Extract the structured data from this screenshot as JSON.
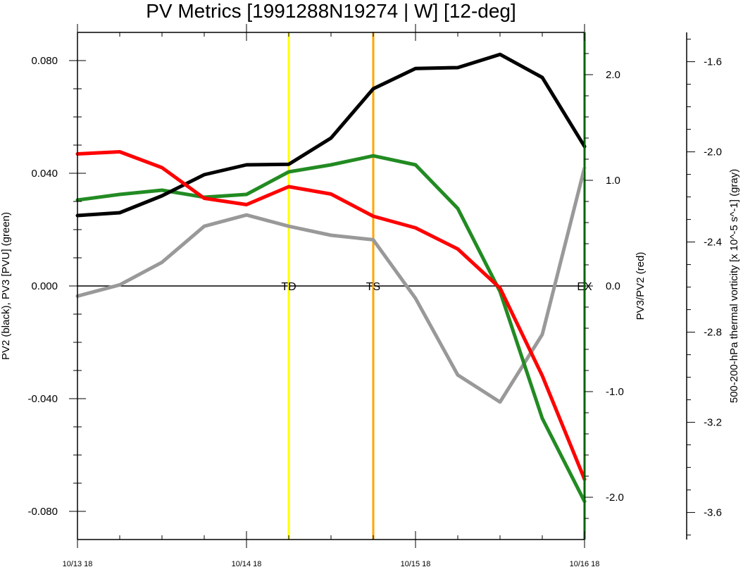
{
  "chart_data": {
    "type": "line",
    "title": "PV Metrics [1991288N19274 | W] [12-deg]",
    "xlabel": "",
    "x_tick_labels": [
      "10/13 18",
      "10/14 18",
      "10/15 18",
      "10/16 18"
    ],
    "xlim": [
      0,
      12
    ],
    "grid": false,
    "left_axis": {
      "label": "PV2 (black), PV3 [PVU] (green)",
      "ylim": [
        -0.09,
        0.09
      ],
      "tick_values": [
        -0.08,
        -0.04,
        0,
        0.04,
        0.08
      ],
      "tick_labels": [
        "-0.080",
        "-0.040",
        "0.000",
        "0.040",
        "0.080"
      ]
    },
    "right_axis": {
      "label": "PV3/PV2 (red)",
      "ylim": [
        -2.4,
        2.4
      ],
      "tick_values": [
        -2,
        -1,
        0,
        1,
        2
      ],
      "tick_labels": [
        "-2.0",
        "-1.0",
        "0.0",
        "1.0",
        "2.0"
      ]
    },
    "far_right_axis": {
      "label": "500-200-hPa thermal vorticity [x 10^-5 s^-1] (gray)",
      "ylim": [
        -3.72,
        -1.47
      ],
      "tick_values": [
        -1.6,
        -2.0,
        -2.4,
        -2.8,
        -3.2,
        -3.6
      ],
      "tick_labels": [
        "-1.6",
        "-2.0",
        "-2.4",
        "-2.8",
        "-3.2",
        "-3.6"
      ]
    },
    "x": [
      0,
      1,
      2,
      3,
      4,
      5,
      6,
      7,
      8,
      9,
      10,
      11,
      12
    ],
    "series": [
      {
        "axis": "left",
        "color": "#000000",
        "values": [
          0.025,
          0.026,
          0.032,
          0.0395,
          0.043,
          0.0432,
          0.0525,
          0.07,
          0.0772,
          0.0775,
          0.0822,
          0.074,
          0.0495
        ]
      },
      {
        "axis": "left",
        "color": "#228b22",
        "values": [
          0.0305,
          0.0325,
          0.034,
          0.0315,
          0.0325,
          0.0405,
          0.043,
          0.0462,
          0.043,
          0.0275,
          -0.002,
          -0.047,
          -0.0765
        ]
      },
      {
        "axis": "right",
        "color": "#ff0000",
        "values": [
          1.25,
          1.27,
          1.12,
          0.83,
          0.77,
          0.94,
          0.87,
          0.66,
          0.55,
          0.35,
          -0.02,
          -0.85,
          -1.83
        ]
      },
      {
        "axis": "far_right",
        "color": "#999999",
        "values": [
          -2.64,
          -2.59,
          -2.49,
          -2.33,
          -2.28,
          -2.33,
          -2.37,
          -2.39,
          -2.65,
          -2.99,
          -3.11,
          -2.81,
          -2.07
        ]
      }
    ],
    "markers": [
      {
        "label": "TD",
        "x": 5,
        "color": "#ffff00"
      },
      {
        "label": "TS",
        "x": 7,
        "color": "#ffa500"
      },
      {
        "label": "EX",
        "x": 12,
        "color": "#006400"
      }
    ]
  }
}
